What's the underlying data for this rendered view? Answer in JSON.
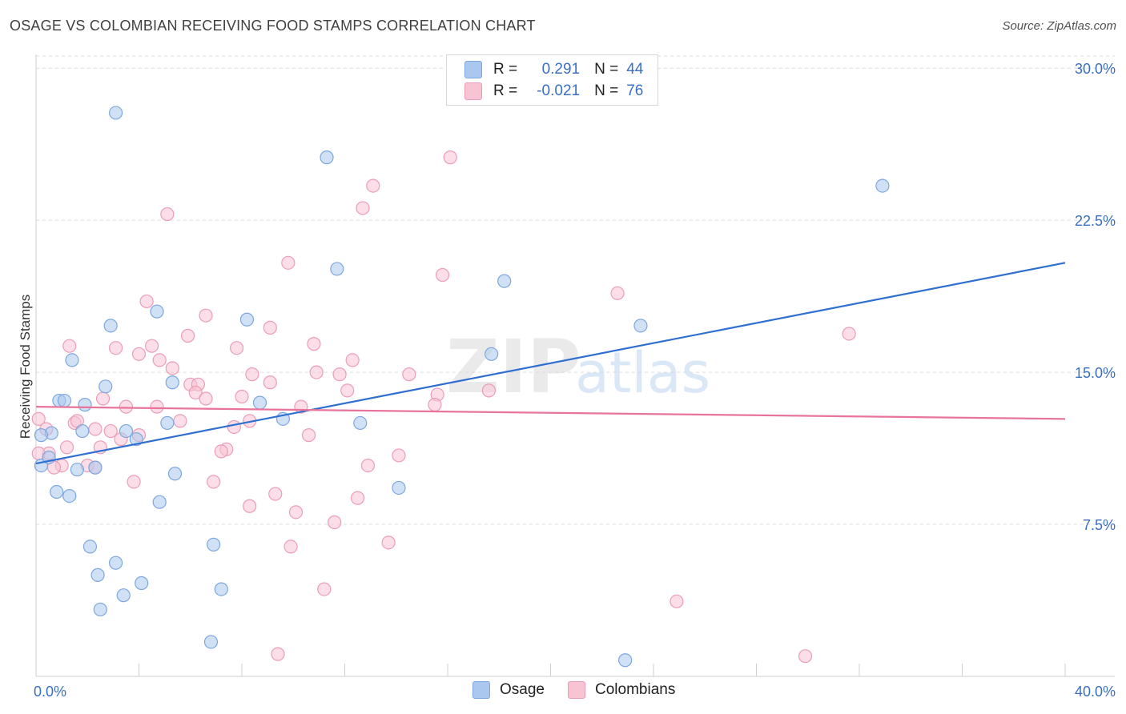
{
  "header": {
    "title": "OSAGE VS COLOMBIAN RECEIVING FOOD STAMPS CORRELATION CHART",
    "source": "Source: ZipAtlas.com"
  },
  "legend": {
    "rows": [
      {
        "r_label": "R =",
        "r_value": "0.291",
        "n_label": "N =",
        "n_value": "44",
        "color": "#aac8ef",
        "border": "#7da7e0"
      },
      {
        "r_label": "R =",
        "r_value": "-0.021",
        "n_label": "N =",
        "n_value": "76",
        "color": "#f8c3d3",
        "border": "#ec9db6"
      }
    ]
  },
  "bottom_legend": {
    "osage": "Osage",
    "colombians": "Colombians"
  },
  "colors": {
    "osage_fill": "#aac8ef",
    "osage_stroke": "#7da7e0",
    "osage_line": "#2f6fd0",
    "colombian_fill": "#f8c3d3",
    "colombian_stroke": "#ec9db6",
    "colombian_line": "#e8749a",
    "grid": "#dcdcdc",
    "axis_text": "#3a6fc4"
  },
  "chart_data": {
    "type": "scatter",
    "title": "OSAGE VS COLOMBIAN RECEIVING FOOD STAMPS CORRELATION CHART",
    "xlabel": "",
    "ylabel": "Receiving Food Stamps",
    "xlim": [
      0,
      40
    ],
    "ylim": [
      0,
      30.6
    ],
    "x_tick_labels": [
      "0.0%",
      "40.0%"
    ],
    "y_ticks": [
      7.5,
      15.0,
      22.5,
      30.0
    ],
    "y_tick_labels": [
      "7.5%",
      "15.0%",
      "22.5%",
      "30.0%"
    ],
    "watermark": {
      "part1": "ZIP",
      "part2": "atlas"
    },
    "series": [
      {
        "name": "Osage",
        "r": 0.291,
        "n": 44,
        "trend": {
          "x": [
            0,
            40
          ],
          "y": [
            10.5,
            20.4
          ]
        },
        "points": [
          [
            3.1,
            27.8
          ],
          [
            11.3,
            25.6
          ],
          [
            32.9,
            24.2
          ],
          [
            11.7,
            20.1
          ],
          [
            18.2,
            19.5
          ],
          [
            4.7,
            18.0
          ],
          [
            8.2,
            17.6
          ],
          [
            2.9,
            17.3
          ],
          [
            23.5,
            17.3
          ],
          [
            1.4,
            15.6
          ],
          [
            17.7,
            15.9
          ],
          [
            2.7,
            14.3
          ],
          [
            5.3,
            14.5
          ],
          [
            0.9,
            13.6
          ],
          [
            1.1,
            13.6
          ],
          [
            1.9,
            13.4
          ],
          [
            8.7,
            13.5
          ],
          [
            9.6,
            12.7
          ],
          [
            5.1,
            12.5
          ],
          [
            12.6,
            12.5
          ],
          [
            3.5,
            12.1
          ],
          [
            3.9,
            11.7
          ],
          [
            0.6,
            12.0
          ],
          [
            1.8,
            12.1
          ],
          [
            0.2,
            11.9
          ],
          [
            0.2,
            10.4
          ],
          [
            0.5,
            10.8
          ],
          [
            1.6,
            10.2
          ],
          [
            2.3,
            10.3
          ],
          [
            5.4,
            10.0
          ],
          [
            0.8,
            9.1
          ],
          [
            1.3,
            8.9
          ],
          [
            14.1,
            9.3
          ],
          [
            4.8,
            8.6
          ],
          [
            2.1,
            6.4
          ],
          [
            6.9,
            6.5
          ],
          [
            3.1,
            5.6
          ],
          [
            2.4,
            5.0
          ],
          [
            4.1,
            4.6
          ],
          [
            3.4,
            4.0
          ],
          [
            7.2,
            4.3
          ],
          [
            2.5,
            3.3
          ],
          [
            6.8,
            1.7
          ],
          [
            22.9,
            0.8
          ]
        ]
      },
      {
        "name": "Colombians",
        "r": -0.021,
        "n": 76,
        "trend": {
          "x": [
            0,
            40
          ],
          "y": [
            13.3,
            12.7
          ]
        },
        "points": [
          [
            16.1,
            25.6
          ],
          [
            13.1,
            24.2
          ],
          [
            12.7,
            23.1
          ],
          [
            5.1,
            22.8
          ],
          [
            9.8,
            20.4
          ],
          [
            15.8,
            19.8
          ],
          [
            22.6,
            18.9
          ],
          [
            4.3,
            18.5
          ],
          [
            6.6,
            17.8
          ],
          [
            9.1,
            17.2
          ],
          [
            31.6,
            16.9
          ],
          [
            5.9,
            16.8
          ],
          [
            1.3,
            16.3
          ],
          [
            3.1,
            16.2
          ],
          [
            4.5,
            16.3
          ],
          [
            7.8,
            16.2
          ],
          [
            10.8,
            16.4
          ],
          [
            4.0,
            15.9
          ],
          [
            4.8,
            15.6
          ],
          [
            12.3,
            15.6
          ],
          [
            5.3,
            15.2
          ],
          [
            10.9,
            15.0
          ],
          [
            11.8,
            14.9
          ],
          [
            14.5,
            14.9
          ],
          [
            8.4,
            14.9
          ],
          [
            6.0,
            14.4
          ],
          [
            6.3,
            14.4
          ],
          [
            9.1,
            14.5
          ],
          [
            6.2,
            14.0
          ],
          [
            12.1,
            14.1
          ],
          [
            17.6,
            14.1
          ],
          [
            15.6,
            13.9
          ],
          [
            2.6,
            13.7
          ],
          [
            8.0,
            13.8
          ],
          [
            6.6,
            13.7
          ],
          [
            0.1,
            12.7
          ],
          [
            3.5,
            13.3
          ],
          [
            4.7,
            13.3
          ],
          [
            10.3,
            13.3
          ],
          [
            15.5,
            13.4
          ],
          [
            1.5,
            12.5
          ],
          [
            5.6,
            12.6
          ],
          [
            8.3,
            12.6
          ],
          [
            7.7,
            12.3
          ],
          [
            2.3,
            12.2
          ],
          [
            2.9,
            12.1
          ],
          [
            10.6,
            11.9
          ],
          [
            4.0,
            11.9
          ],
          [
            3.3,
            11.7
          ],
          [
            1.2,
            11.3
          ],
          [
            2.5,
            11.3
          ],
          [
            7.4,
            11.2
          ],
          [
            0.5,
            11.0
          ],
          [
            0.1,
            11.0
          ],
          [
            7.2,
            11.1
          ],
          [
            14.1,
            10.9
          ],
          [
            2.0,
            10.4
          ],
          [
            1.0,
            10.4
          ],
          [
            0.7,
            10.3
          ],
          [
            2.3,
            10.3
          ],
          [
            12.9,
            10.4
          ],
          [
            3.8,
            9.6
          ],
          [
            6.9,
            9.6
          ],
          [
            9.3,
            9.0
          ],
          [
            12.5,
            8.8
          ],
          [
            8.3,
            8.4
          ],
          [
            10.1,
            8.1
          ],
          [
            11.6,
            7.6
          ],
          [
            9.9,
            6.4
          ],
          [
            13.7,
            6.6
          ],
          [
            11.2,
            4.3
          ],
          [
            24.9,
            3.7
          ],
          [
            9.4,
            1.1
          ],
          [
            29.9,
            1.0
          ],
          [
            1.6,
            12.6
          ],
          [
            0.4,
            12.2
          ]
        ]
      }
    ]
  }
}
